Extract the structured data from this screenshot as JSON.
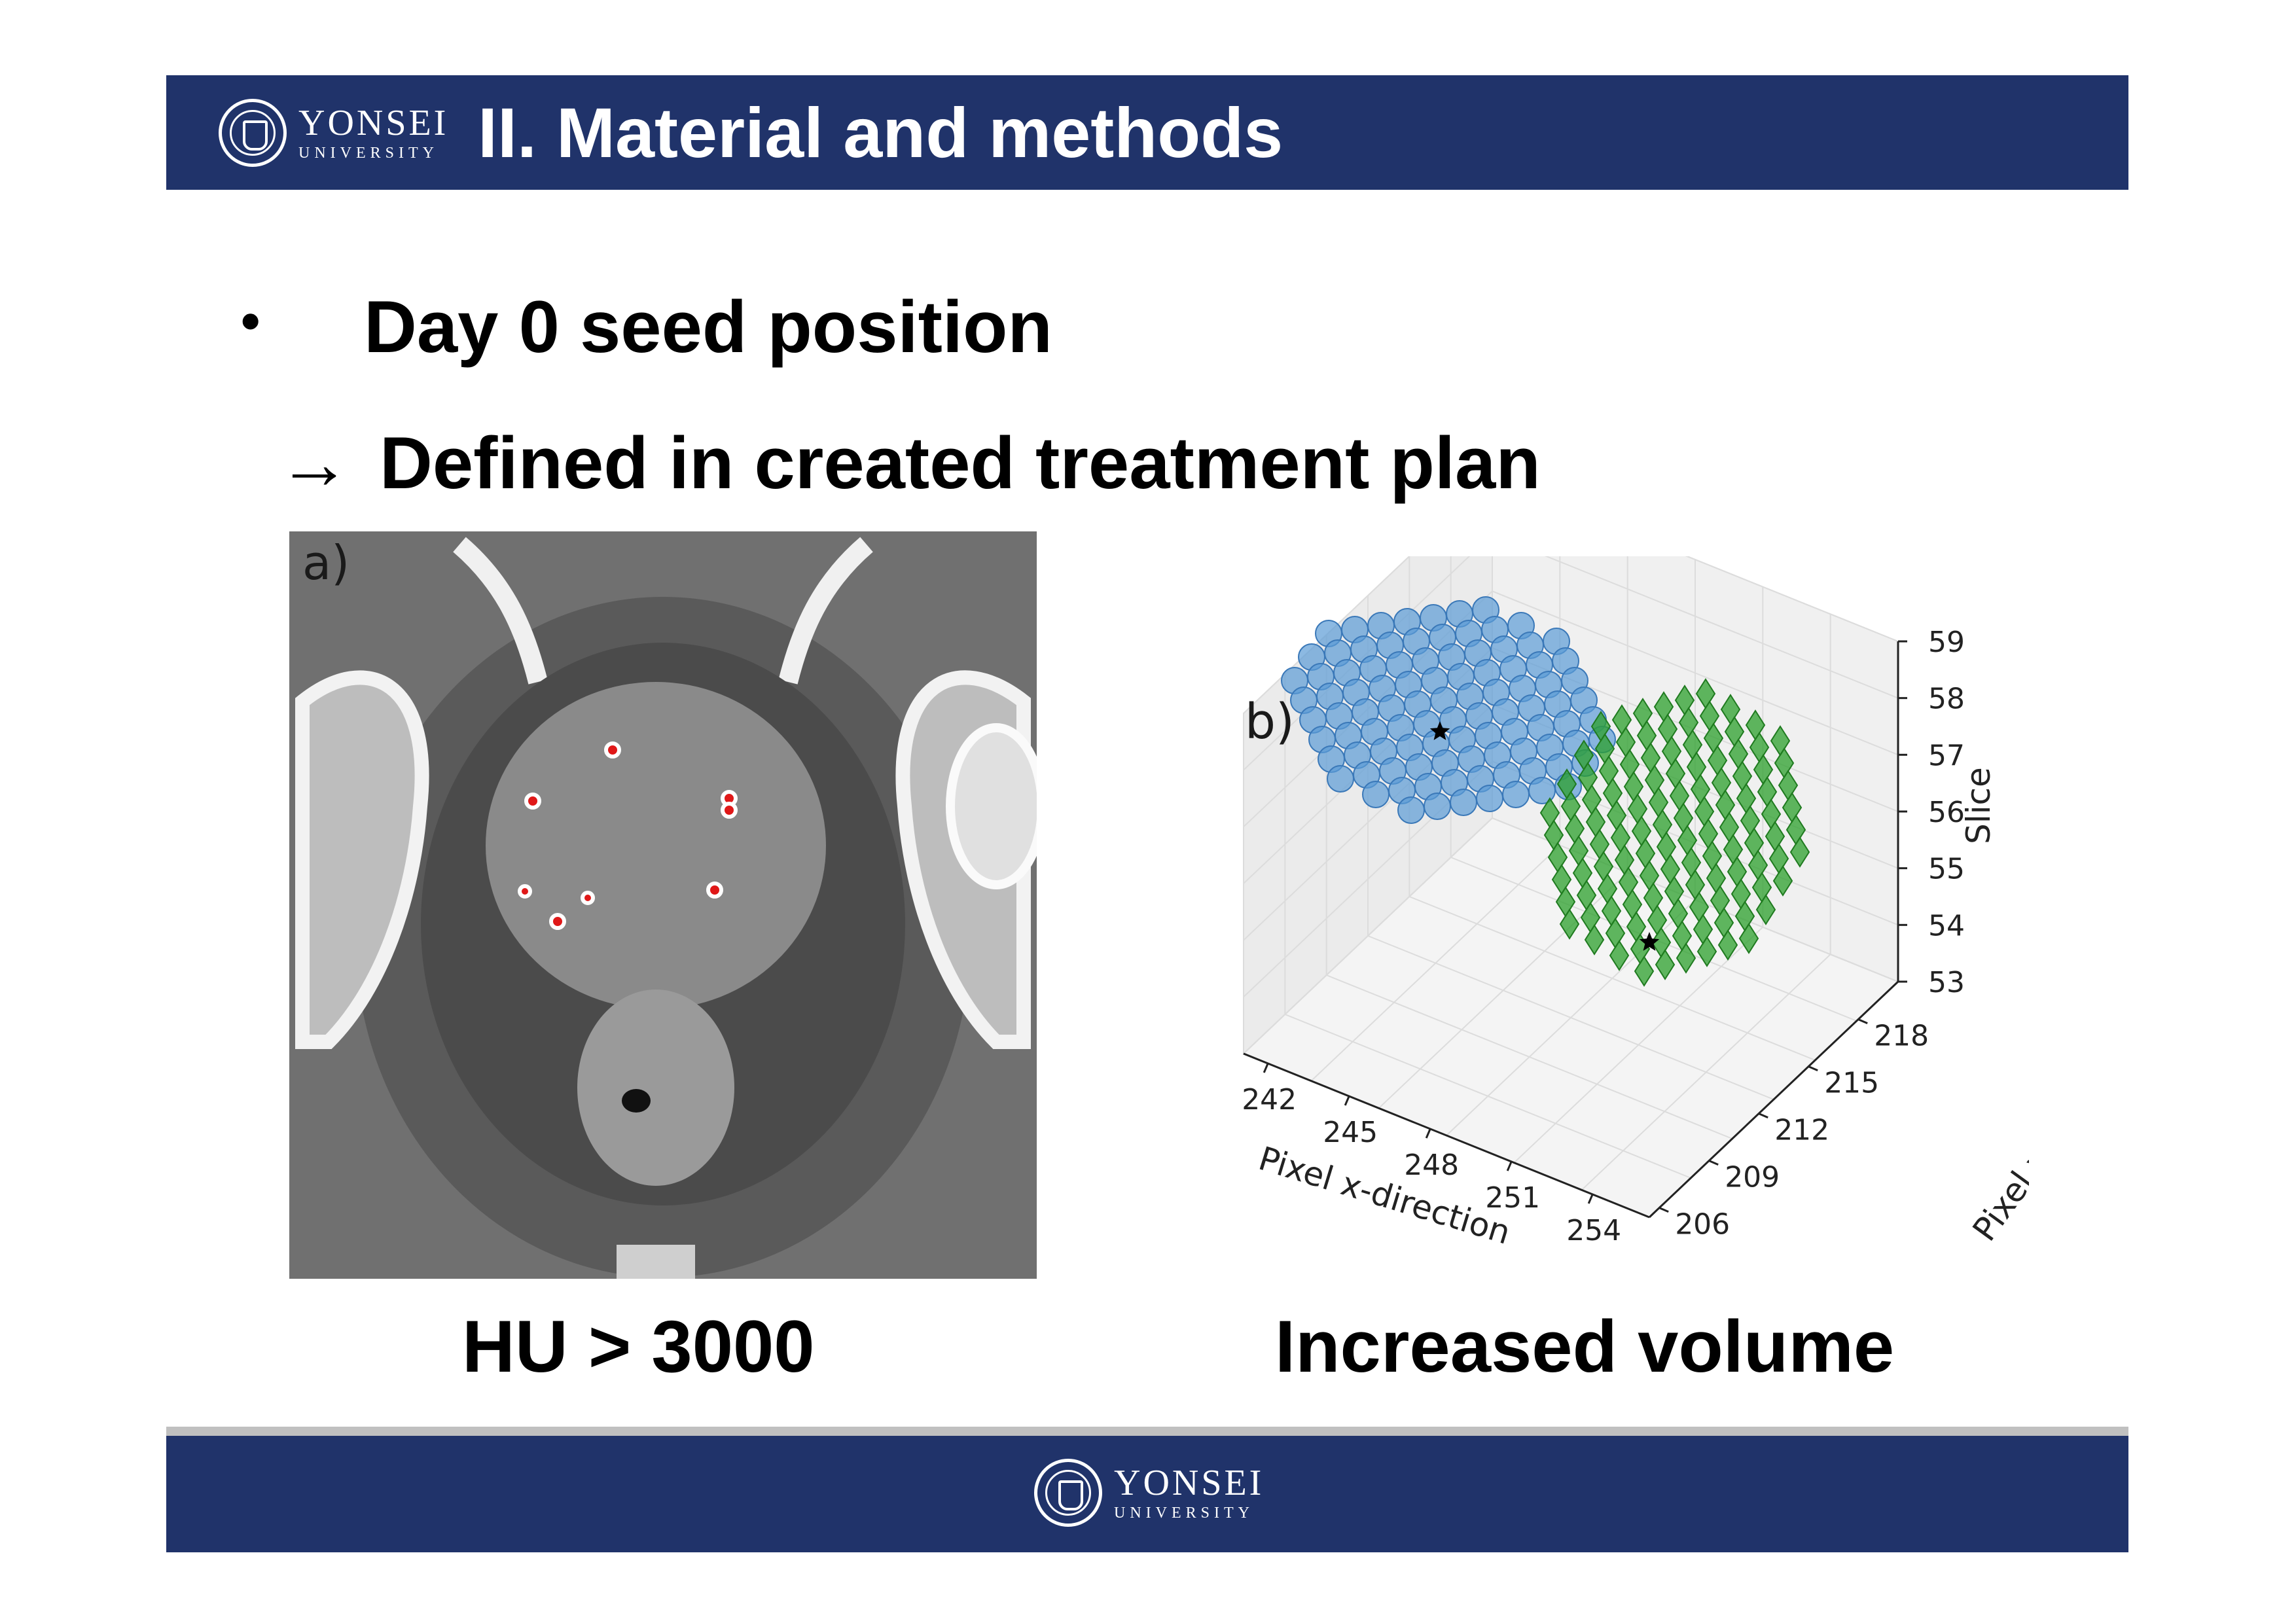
{
  "header": {
    "logo": {
      "name": "YONSEI",
      "sub": "UNIVERSITY",
      "icon": "university-seal-icon"
    },
    "title": "II. Material and methods"
  },
  "bullet": {
    "marker": "•",
    "text": "Day 0 seed position",
    "arrow": "→",
    "sub_text": "Defined in created treatment plan"
  },
  "figure_a": {
    "label": "a)",
    "caption": "HU > 3000"
  },
  "figure_b": {
    "label": "b)",
    "caption": "Increased volume",
    "xlabel": "Pixel x-direction",
    "ylabel": "Pixel y-direction",
    "zlabel": "Slice",
    "x_ticks": [
      "242",
      "245",
      "248",
      "251",
      "254"
    ],
    "y_ticks": [
      "206",
      "209",
      "212",
      "215",
      "218"
    ],
    "z_ticks": [
      "53",
      "54",
      "55",
      "56",
      "57",
      "58",
      "59"
    ],
    "colors": {
      "blue": "#5b9bd5",
      "green": "#2ca02c"
    }
  },
  "footer": {
    "logo": {
      "name": "YONSEI",
      "sub": "UNIVERSITY",
      "icon": "university-seal-icon"
    }
  }
}
